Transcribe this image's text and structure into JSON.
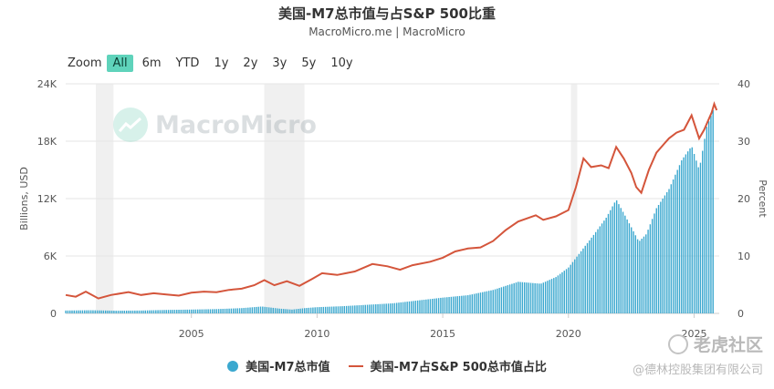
{
  "header": {
    "title": "美国-M7总市值与占S&P 500比重",
    "subtitle": "MacroMicro.me | MacroMicro"
  },
  "zoom": {
    "label": "Zoom",
    "options": [
      "All",
      "6m",
      "YTD",
      "1y",
      "2y",
      "3y",
      "5y",
      "10y"
    ],
    "active": "All"
  },
  "watermark": {
    "brand": "MacroMicro",
    "corner_line1": "老虎社区",
    "corner_line2": "@德林控股集团有限公司"
  },
  "colors": {
    "bars": "#3ba8cf",
    "line": "#d4553b",
    "recession": "#f0f0f0"
  },
  "chart_data": {
    "type": "bar",
    "x_range": [
      2000.0,
      2026.0
    ],
    "x_ticks": [
      2005,
      2010,
      2015,
      2020,
      2025
    ],
    "y_left": {
      "label": "Billions, USD",
      "range": [
        0,
        24000
      ],
      "ticks": [
        0,
        6000,
        12000,
        18000,
        24000
      ],
      "tick_labels": [
        "0",
        "6K",
        "12K",
        "18K",
        "24K"
      ]
    },
    "y_right": {
      "label": "Percent",
      "range": [
        0,
        40
      ],
      "ticks": [
        0,
        10,
        20,
        30,
        40
      ],
      "tick_labels": [
        "0",
        "10",
        "20",
        "30",
        "40"
      ]
    },
    "recessions": [
      [
        2001.2,
        2001.9
      ],
      [
        2007.9,
        2009.5
      ],
      [
        2020.1,
        2020.35
      ]
    ],
    "legend_position": "bottom",
    "series": [
      {
        "name": "美国-M7总市值",
        "type": "bar",
        "axis": "left",
        "points": [
          [
            2000.0,
            300
          ],
          [
            2001.0,
            330
          ],
          [
            2002.0,
            280
          ],
          [
            2003.0,
            300
          ],
          [
            2004.0,
            360
          ],
          [
            2005.0,
            400
          ],
          [
            2006.0,
            450
          ],
          [
            2007.0,
            550
          ],
          [
            2007.8,
            720
          ],
          [
            2008.5,
            500
          ],
          [
            2009.0,
            400
          ],
          [
            2009.5,
            550
          ],
          [
            2010.0,
            650
          ],
          [
            2011.0,
            750
          ],
          [
            2012.0,
            900
          ],
          [
            2013.0,
            1050
          ],
          [
            2014.0,
            1350
          ],
          [
            2015.0,
            1650
          ],
          [
            2016.0,
            1900
          ],
          [
            2017.0,
            2450
          ],
          [
            2018.0,
            3300
          ],
          [
            2018.9,
            3100
          ],
          [
            2019.5,
            3800
          ],
          [
            2020.0,
            4800
          ],
          [
            2020.5,
            6500
          ],
          [
            2021.0,
            8200
          ],
          [
            2021.5,
            10000
          ],
          [
            2021.9,
            11900
          ],
          [
            2022.4,
            9500
          ],
          [
            2022.8,
            7500
          ],
          [
            2023.1,
            8300
          ],
          [
            2023.5,
            11000
          ],
          [
            2024.0,
            13000
          ],
          [
            2024.5,
            16000
          ],
          [
            2024.9,
            17500
          ],
          [
            2025.2,
            15000
          ],
          [
            2025.5,
            19500
          ],
          [
            2025.8,
            21600
          ]
        ]
      },
      {
        "name": "美国-M7占S&P 500总市值占比",
        "type": "line",
        "axis": "right",
        "points": [
          [
            2000.0,
            3.2
          ],
          [
            2000.4,
            2.9
          ],
          [
            2000.8,
            3.8
          ],
          [
            2001.3,
            2.6
          ],
          [
            2001.8,
            3.2
          ],
          [
            2002.5,
            3.7
          ],
          [
            2003.0,
            3.2
          ],
          [
            2003.5,
            3.5
          ],
          [
            2004.0,
            3.3
          ],
          [
            2004.5,
            3.1
          ],
          [
            2005.0,
            3.6
          ],
          [
            2005.5,
            3.8
          ],
          [
            2006.0,
            3.7
          ],
          [
            2006.5,
            4.1
          ],
          [
            2007.0,
            4.3
          ],
          [
            2007.5,
            4.9
          ],
          [
            2007.9,
            5.8
          ],
          [
            2008.3,
            4.9
          ],
          [
            2008.8,
            5.6
          ],
          [
            2009.3,
            4.8
          ],
          [
            2009.8,
            6.0
          ],
          [
            2010.2,
            7.0
          ],
          [
            2010.8,
            6.7
          ],
          [
            2011.5,
            7.3
          ],
          [
            2012.2,
            8.6
          ],
          [
            2012.8,
            8.2
          ],
          [
            2013.3,
            7.6
          ],
          [
            2013.8,
            8.4
          ],
          [
            2014.5,
            9.0
          ],
          [
            2015.0,
            9.7
          ],
          [
            2015.5,
            10.8
          ],
          [
            2016.0,
            11.3
          ],
          [
            2016.5,
            11.5
          ],
          [
            2017.0,
            12.6
          ],
          [
            2017.5,
            14.5
          ],
          [
            2018.0,
            16.0
          ],
          [
            2018.7,
            17.1
          ],
          [
            2019.0,
            16.3
          ],
          [
            2019.5,
            16.9
          ],
          [
            2020.0,
            18.0
          ],
          [
            2020.3,
            22.0
          ],
          [
            2020.6,
            27.0
          ],
          [
            2020.9,
            25.5
          ],
          [
            2021.3,
            25.8
          ],
          [
            2021.6,
            25.3
          ],
          [
            2021.9,
            29.0
          ],
          [
            2022.2,
            27.0
          ],
          [
            2022.5,
            24.5
          ],
          [
            2022.7,
            22.0
          ],
          [
            2022.9,
            21.0
          ],
          [
            2023.2,
            25.0
          ],
          [
            2023.5,
            28.0
          ],
          [
            2023.8,
            29.5
          ],
          [
            2024.0,
            30.5
          ],
          [
            2024.3,
            31.5
          ],
          [
            2024.6,
            32.0
          ],
          [
            2024.9,
            34.5
          ],
          [
            2025.2,
            30.5
          ],
          [
            2025.4,
            32.0
          ],
          [
            2025.7,
            35.0
          ],
          [
            2025.8,
            36.5
          ],
          [
            2025.9,
            35.4
          ]
        ]
      }
    ]
  }
}
